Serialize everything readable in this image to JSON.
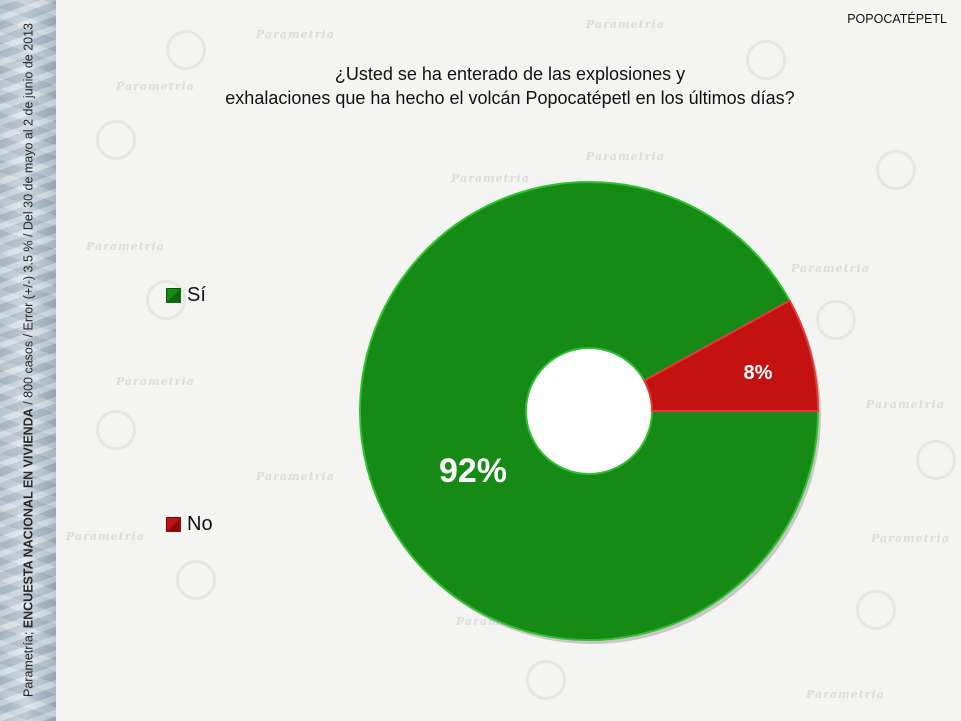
{
  "header": {
    "topic": "POPOCATÉPETL",
    "question_line1": "¿Usted se ha enterado de las explosiones y",
    "question_line2": "exhalaciones que ha hecho el volcán Popocatépetl en los últimos días?"
  },
  "sidebar": {
    "source_prefix": "Parametría; ",
    "survey_name": "ENCUESTA NACIONAL EN VIVIENDA",
    "details": " / 800 casos / Error (+/-) 3.5 % / Del 30 de mayo al 2  de junio de 2013"
  },
  "watermark": {
    "brand": "Parametria"
  },
  "colors": {
    "si": "#158a15",
    "no": "#c41111",
    "si_dark": "#0b6a0b",
    "no_dark": "#8a0a0a"
  },
  "chart_data": {
    "type": "pie",
    "variant": "donut",
    "title": "",
    "categories": [
      "Sí",
      "No"
    ],
    "values": [
      92,
      8
    ],
    "labels": [
      "92%",
      "8%"
    ],
    "colors": [
      "#158a15",
      "#c41111"
    ],
    "legend_position": "left"
  }
}
